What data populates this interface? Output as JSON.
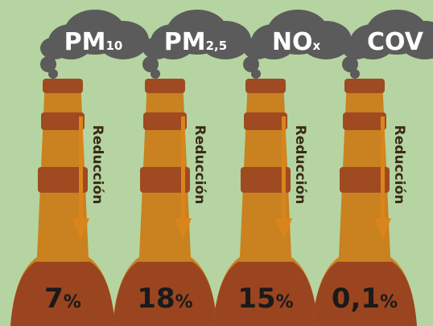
{
  "items": [
    {
      "pollutant": "PM",
      "subscript": "10",
      "value": "7",
      "unit": "%",
      "arrow_label": "Reducción"
    },
    {
      "pollutant": "PM",
      "subscript": "2,5",
      "value": "18",
      "unit": "%",
      "arrow_label": "Reducción"
    },
    {
      "pollutant": "NO",
      "subscript": "x",
      "value": "15",
      "unit": "%",
      "arrow_label": "Reducción"
    },
    {
      "pollutant": "COV",
      "subscript": null,
      "value": "0,1",
      "unit": "%",
      "arrow_label": "Reducción"
    }
  ]
}
